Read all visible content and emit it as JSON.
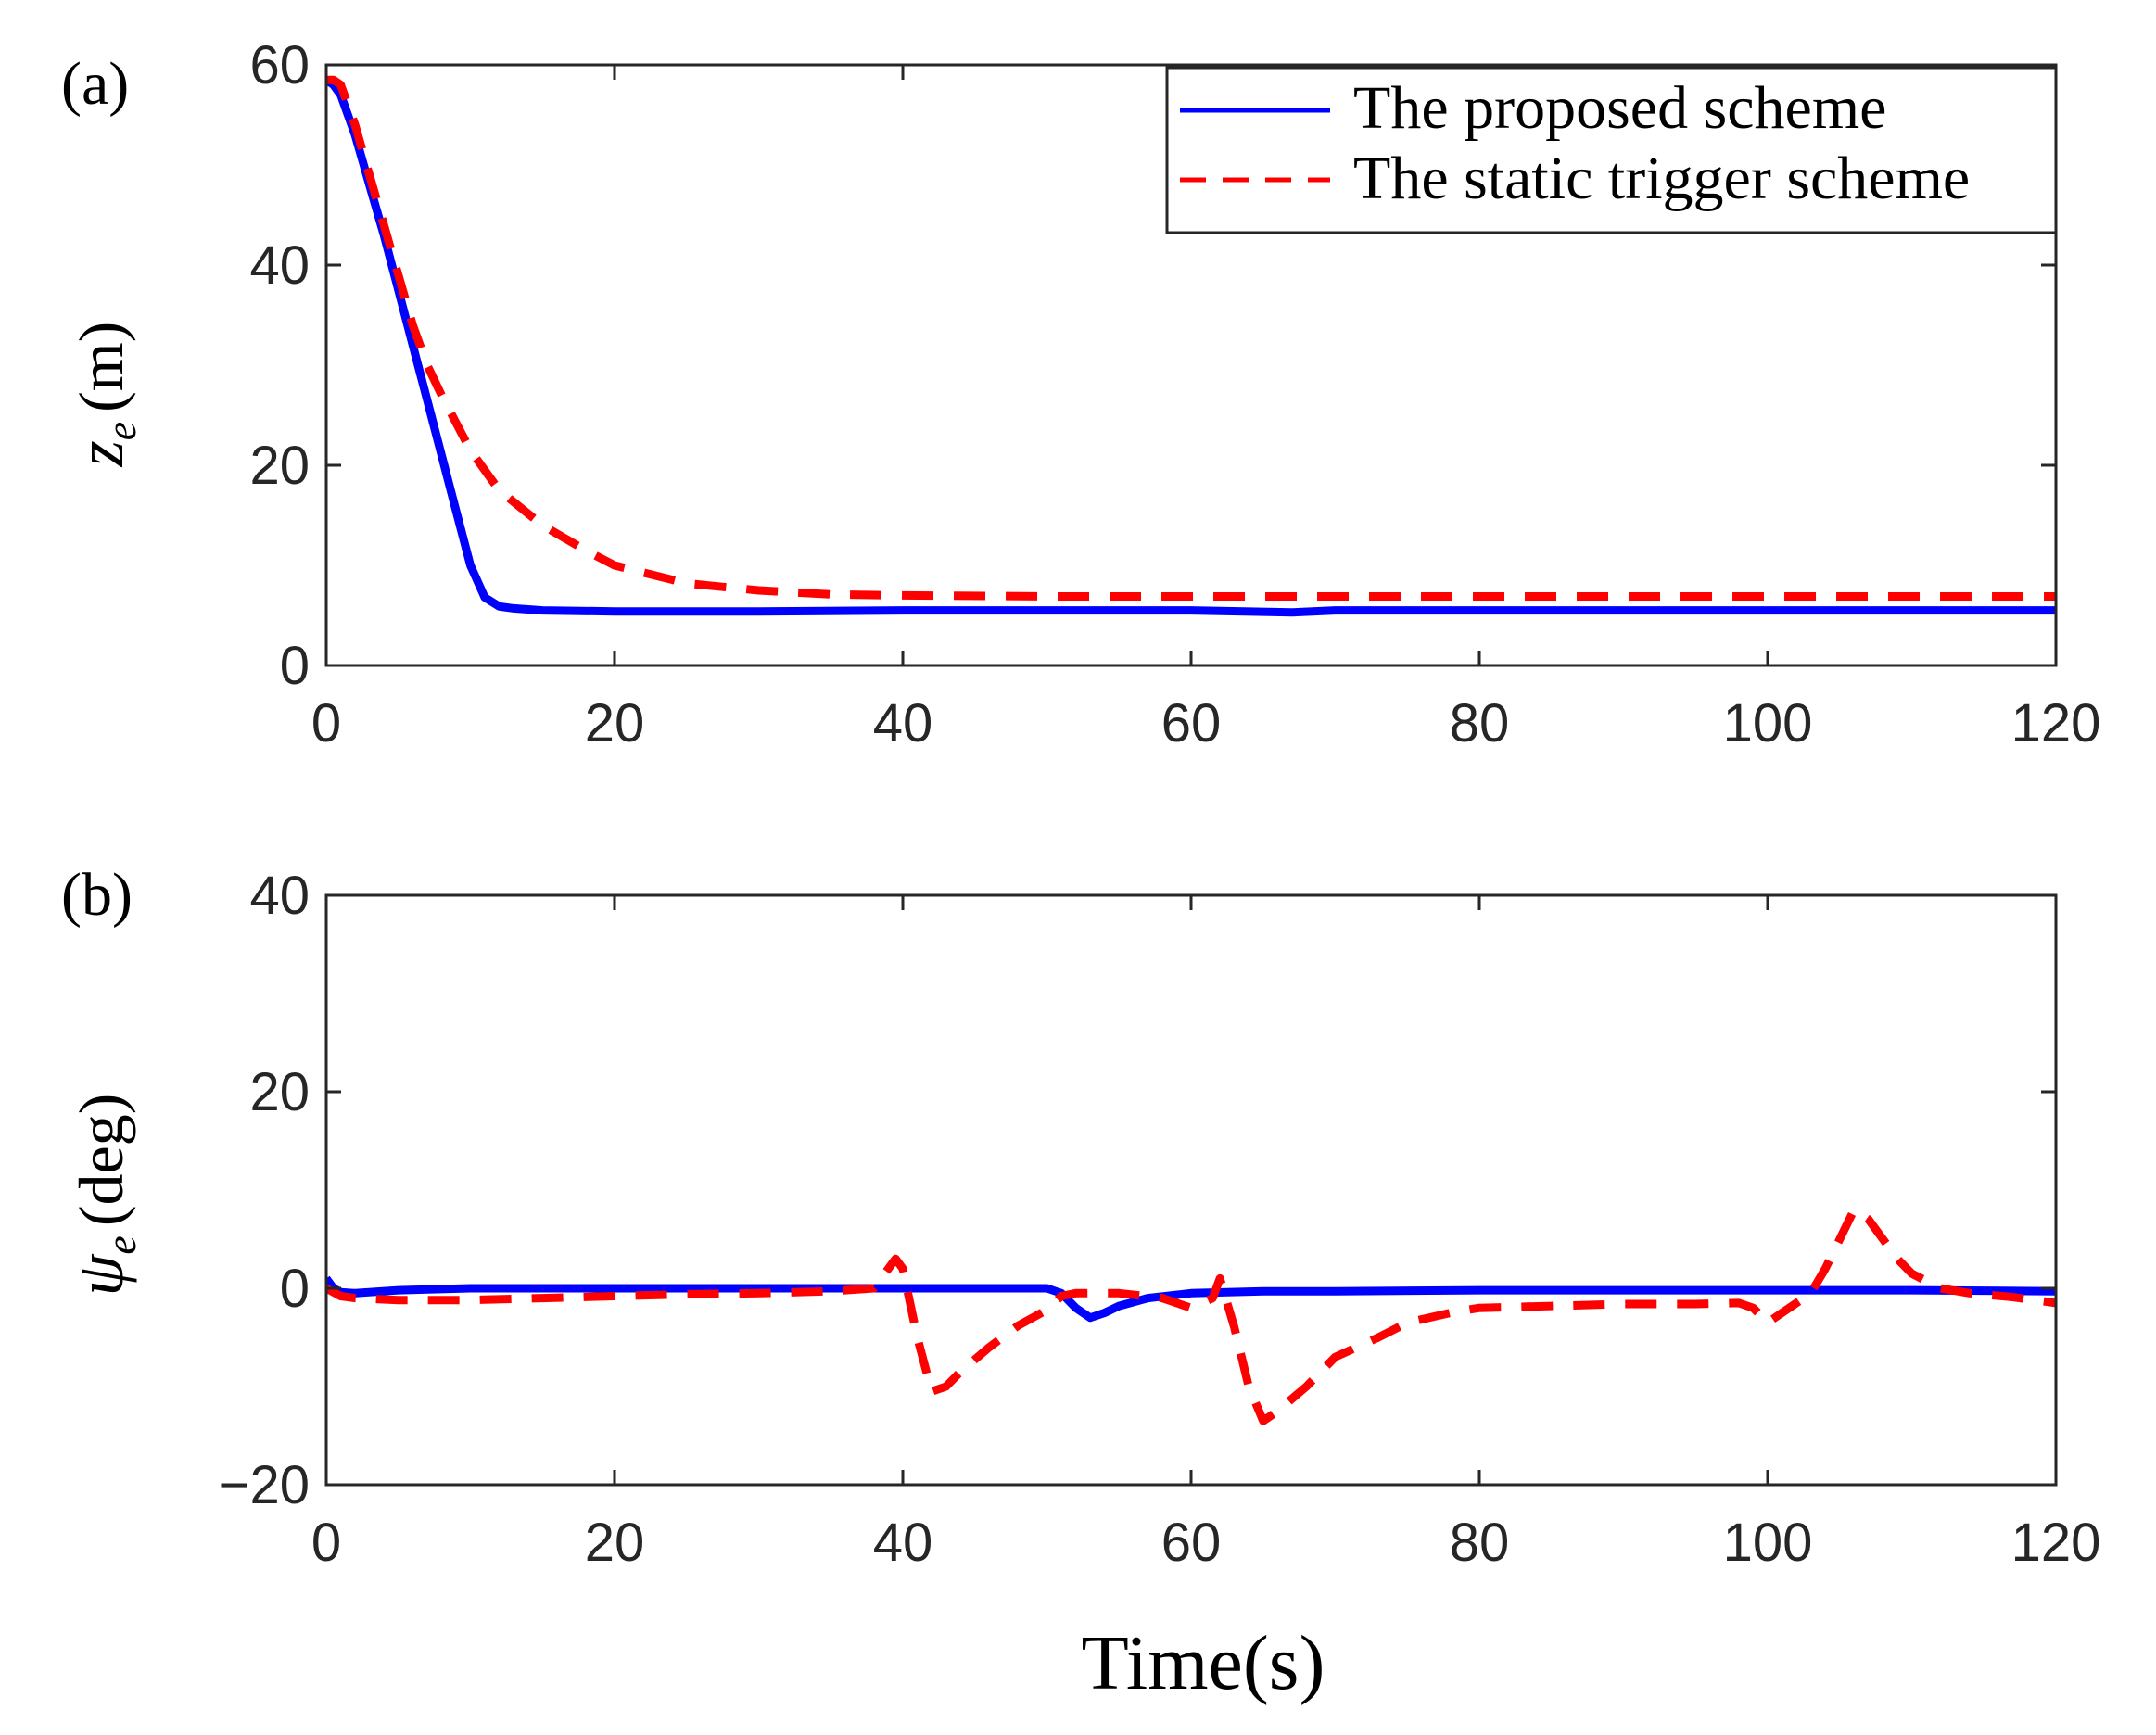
{
  "chart_data": [
    {
      "type": "line",
      "panel_label": "(a)",
      "ylabel": {
        "symbol": "z",
        "subscript": "e",
        "unit": "(m)"
      },
      "xlabel": "",
      "xlim": [
        0,
        120
      ],
      "ylim": [
        0,
        60
      ],
      "xticks": [
        0,
        20,
        40,
        60,
        80,
        100,
        120
      ],
      "yticks": [
        0,
        20,
        40,
        60
      ],
      "grid": false,
      "legend": "top-right",
      "series": [
        {
          "name": "The proposed scheme",
          "color": "#0000ff",
          "style": "solid",
          "x": [
            0,
            0.5,
            1,
            2,
            3,
            4,
            5,
            6,
            7,
            8,
            9,
            10,
            11,
            12,
            13,
            15,
            20,
            30,
            40,
            50,
            60,
            67,
            70,
            80,
            90,
            100,
            110,
            120
          ],
          "y": [
            58.5,
            58,
            57,
            53,
            48,
            43,
            37.5,
            32,
            26.5,
            21,
            15.5,
            10,
            6.8,
            5.9,
            5.7,
            5.5,
            5.4,
            5.4,
            5.5,
            5.5,
            5.5,
            5.3,
            5.5,
            5.5,
            5.5,
            5.5,
            5.5,
            5.5
          ]
        },
        {
          "name": "The static trigger scheme",
          "color": "#ff0000",
          "style": "dashed",
          "x": [
            0,
            0.5,
            1,
            2,
            3,
            4,
            5,
            6,
            7,
            8,
            10,
            12,
            15,
            18,
            20,
            25,
            30,
            35,
            40,
            50,
            60,
            70,
            80,
            90,
            100,
            110,
            120
          ],
          "y": [
            58.5,
            58.5,
            58,
            54,
            49,
            44,
            39,
            34,
            30,
            27,
            21.5,
            17.5,
            14,
            11.5,
            10,
            8.2,
            7.5,
            7.1,
            7,
            6.9,
            6.9,
            6.9,
            6.9,
            6.9,
            6.9,
            6.9,
            6.9
          ]
        }
      ]
    },
    {
      "type": "line",
      "panel_label": "(b)",
      "ylabel": {
        "symbol": "ψ",
        "subscript": "e",
        "unit": "(deg)"
      },
      "xlabel": "Time(s)",
      "xlim": [
        0,
        120
      ],
      "ylim": [
        -20,
        40
      ],
      "xticks": [
        0,
        20,
        40,
        60,
        80,
        100,
        120
      ],
      "yticks": [
        -20,
        0,
        20,
        40
      ],
      "ytick_labels": [
        "−20",
        "0",
        "20",
        "40"
      ],
      "grid": false,
      "series": [
        {
          "name": "The proposed scheme",
          "color": "#0000ff",
          "style": "solid",
          "x": [
            0,
            0.5,
            1,
            2,
            5,
            10,
            20,
            30,
            40,
            50,
            51,
            52,
            53,
            54,
            55,
            57,
            60,
            65,
            70,
            80,
            90,
            100,
            110,
            120
          ],
          "y": [
            1,
            0,
            -0.4,
            -0.5,
            -0.2,
            0,
            0,
            0,
            0,
            0,
            -0.5,
            -2,
            -3,
            -2.5,
            -1.8,
            -1,
            -0.5,
            -0.3,
            -0.3,
            -0.2,
            -0.2,
            -0.2,
            -0.2,
            -0.3
          ]
        },
        {
          "name": "The static trigger scheme",
          "color": "#ff0000",
          "style": "dashed",
          "x": [
            0,
            1,
            2,
            5,
            10,
            15,
            20,
            25,
            30,
            35,
            38,
            39.5,
            40,
            41,
            42,
            43,
            44,
            46,
            48,
            50,
            51,
            52,
            55,
            58,
            60,
            61.5,
            62,
            63,
            64,
            65,
            66,
            68,
            70,
            73,
            75,
            78,
            80,
            85,
            90,
            95,
            98,
            99,
            100,
            101,
            102,
            103,
            104,
            105,
            106,
            107,
            108,
            109,
            110,
            112,
            114,
            117,
            120
          ],
          "y": [
            0,
            -0.8,
            -1,
            -1.2,
            -1.2,
            -1,
            -0.8,
            -0.6,
            -0.5,
            -0.3,
            0,
            3,
            2,
            -5,
            -10.5,
            -10,
            -8.5,
            -6,
            -3.8,
            -2.2,
            -0.8,
            -0.5,
            -0.5,
            -1,
            -2,
            -1,
            1,
            -4,
            -10,
            -13.5,
            -12.5,
            -10,
            -7,
            -5,
            -3.5,
            -2.5,
            -2,
            -1.8,
            -1.6,
            -1.6,
            -1.5,
            -2,
            -3.5,
            -2.5,
            -1.5,
            -0.5,
            2,
            5,
            8,
            7,
            5,
            3,
            1.5,
            0,
            -0.5,
            -0.9,
            -1.5
          ]
        }
      ]
    }
  ]
}
